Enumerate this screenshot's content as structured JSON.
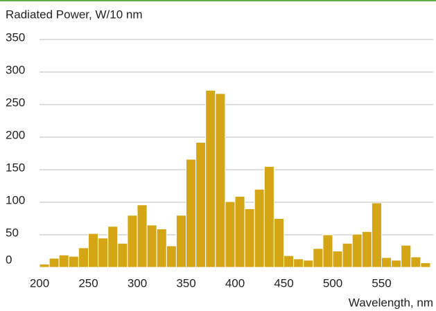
{
  "chart_data": {
    "type": "histogram",
    "ylabel": "Radiated Power, W/10 nm",
    "xlabel": "Wavelength, nm",
    "bins": [
      200,
      210,
      220,
      230,
      240,
      250,
      260,
      270,
      280,
      290,
      300,
      310,
      320,
      330,
      340,
      350,
      360,
      370,
      380,
      390,
      400,
      410,
      420,
      430,
      440,
      450,
      460,
      470,
      480,
      490,
      500,
      510,
      520,
      530,
      540,
      550,
      560,
      570,
      580,
      590,
      600
    ],
    "values": [
      5,
      14,
      19,
      17,
      30,
      52,
      45,
      63,
      37,
      80,
      96,
      65,
      59,
      33,
      80,
      166,
      192,
      272,
      267,
      101,
      109,
      90,
      120,
      155,
      75,
      18,
      13,
      11,
      29,
      50,
      25,
      37,
      51,
      55,
      99,
      15,
      11,
      34,
      16,
      7
    ],
    "color": "#d4a514",
    "xlim": [
      200,
      600
    ],
    "xticks": [
      200,
      250,
      300,
      350,
      400,
      450,
      500,
      550
    ],
    "ylim": [
      0,
      350
    ],
    "yticks": [
      0,
      50,
      100,
      150,
      200,
      250,
      300,
      350
    ],
    "grid": true
  }
}
